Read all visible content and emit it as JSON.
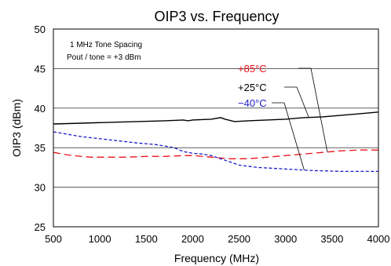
{
  "chart_data": {
    "type": "line",
    "title": "OIP3 vs. Frequency",
    "xlabel": "Frequency (MHz)",
    "ylabel": "OIP3 (dBm)",
    "xlim": [
      500,
      4000
    ],
    "ylim": [
      25,
      50
    ],
    "xticks": [
      "500",
      "1000",
      "1500",
      "2000",
      "2500",
      "3000",
      "3500",
      "4000"
    ],
    "yticks": [
      "25",
      "30",
      "35",
      "40",
      "45",
      "50"
    ],
    "grid": "horizontal",
    "annotations": [
      "1 MHz Tone Spacing",
      "Pout / tone = +3 dBm"
    ],
    "series": [
      {
        "name": "+85°C",
        "color": "#e8141b",
        "dash": "long-dash",
        "x": [
          500,
          700,
          900,
          1100,
          1300,
          1500,
          1700,
          1900,
          2000,
          2200,
          2400,
          2600,
          2800,
          3000,
          3200,
          3400,
          3600,
          3800,
          4000
        ],
        "y": [
          34.4,
          34.0,
          33.8,
          33.8,
          33.8,
          33.9,
          33.9,
          34.0,
          34.0,
          33.8,
          33.6,
          33.6,
          33.8,
          34.0,
          34.2,
          34.4,
          34.6,
          34.7,
          34.7
        ]
      },
      {
        "name": "+25°C",
        "color": "#000000",
        "dash": "solid",
        "x": [
          500,
          800,
          1100,
          1400,
          1700,
          1900,
          1950,
          2000,
          2200,
          2300,
          2350,
          2450,
          2600,
          2800,
          3000,
          3200,
          3400,
          3600,
          3800,
          4000
        ],
        "y": [
          38.0,
          38.1,
          38.2,
          38.3,
          38.4,
          38.5,
          38.4,
          38.5,
          38.6,
          38.8,
          38.6,
          38.3,
          38.4,
          38.5,
          38.6,
          38.8,
          38.9,
          39.1,
          39.3,
          39.5
        ]
      },
      {
        "name": "−40°C",
        "color": "#1c1cc8",
        "dash": "short-dash",
        "x": [
          500,
          800,
          1100,
          1400,
          1600,
          1800,
          1900,
          2000,
          2100,
          2200,
          2300,
          2400,
          2500,
          2700,
          3000,
          3300,
          3600,
          3800,
          4000
        ],
        "y": [
          37.0,
          36.4,
          36.0,
          35.6,
          35.4,
          35.0,
          34.5,
          34.3,
          34.2,
          34.0,
          33.6,
          33.2,
          32.8,
          32.5,
          32.3,
          32.1,
          32.0,
          32.0,
          32.0
        ]
      }
    ]
  }
}
